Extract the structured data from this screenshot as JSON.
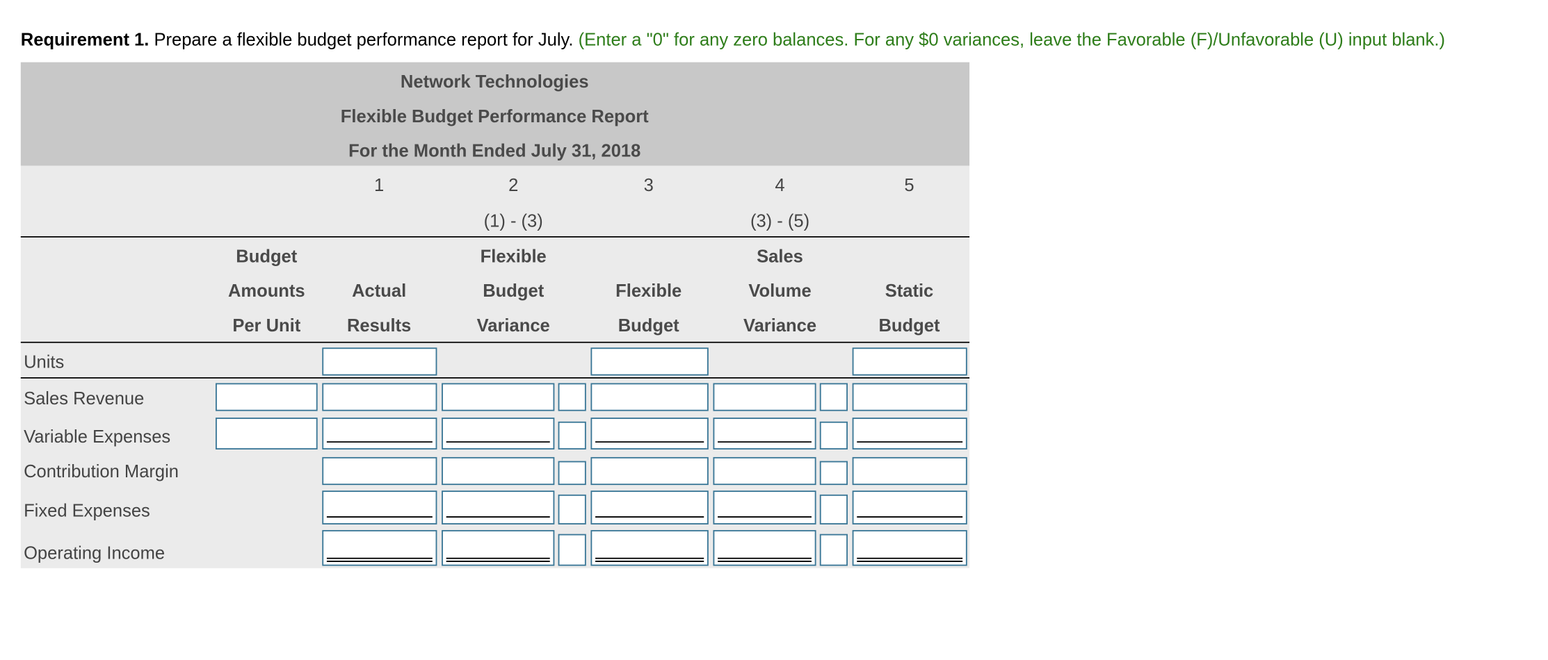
{
  "instruction": {
    "bold": "Requirement 1.",
    "text": " Prepare a flexible budget performance report for July.",
    "note": " (Enter a \"0\" for any zero balances. For any $0 variances, leave the Favorable (F)/Unfavorable (U) input blank.)"
  },
  "header": {
    "company": "Network Technologies",
    "title": "Flexible Budget Performance Report",
    "period": "For the Month Ended July 31, 2018"
  },
  "column_numbers": [
    "1",
    "2",
    "3",
    "4",
    "5"
  ],
  "formulas": [
    "(1) - (3)",
    "(3) - (5)"
  ],
  "column_headers": [
    [
      "Budget",
      "Amounts",
      "Per Unit"
    ],
    [
      "Actual",
      "Results"
    ],
    [
      "Flexible",
      "Budget",
      "Variance"
    ],
    [
      "Flexible",
      "Budget"
    ],
    [
      "Sales",
      "Volume",
      "Variance"
    ],
    [
      "Static",
      "Budget"
    ]
  ],
  "rows": [
    "Units",
    "Sales Revenue",
    "Variable Expenses",
    "Contribution Margin",
    "Fixed Expenses",
    "Operating Income"
  ]
}
